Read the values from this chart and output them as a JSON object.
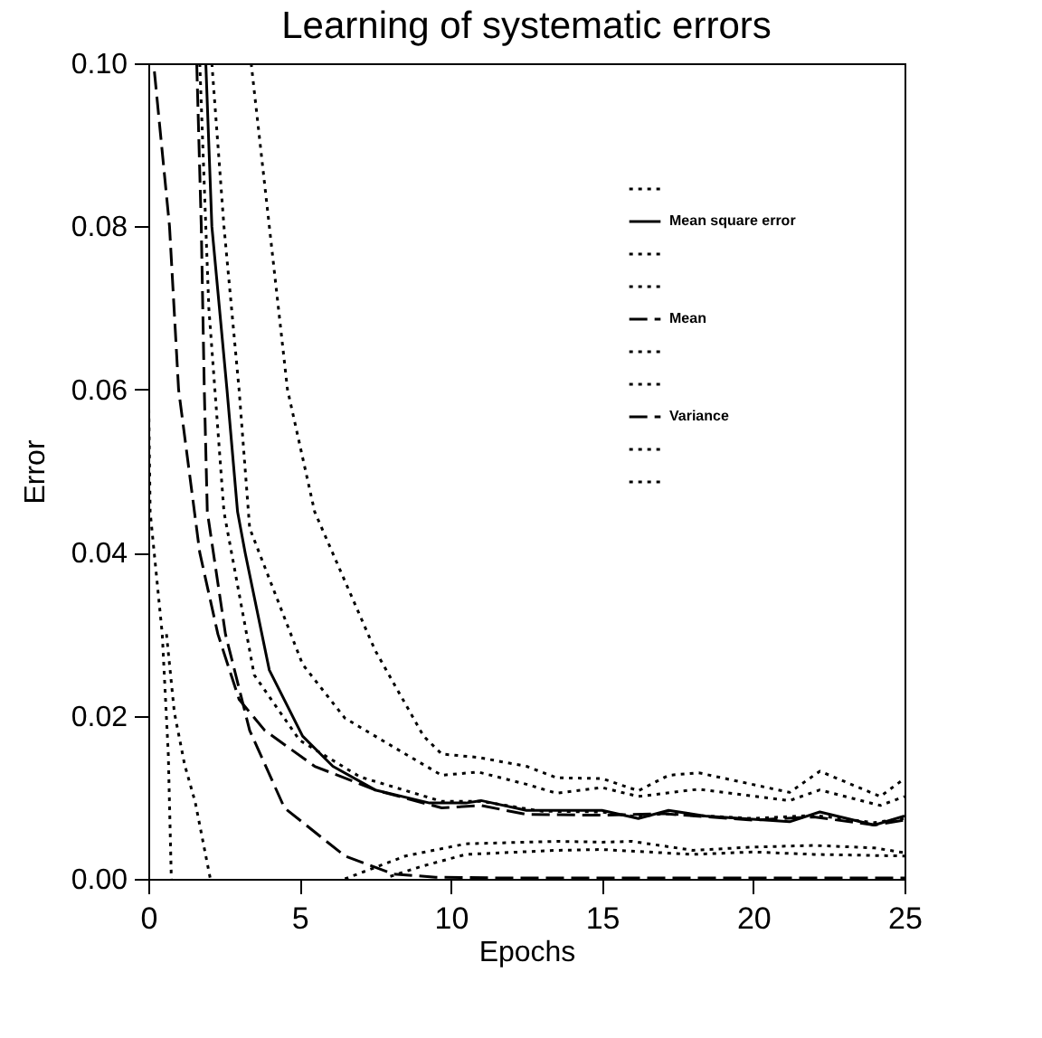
{
  "chart_data": {
    "type": "line",
    "title": "Learning of systematic errors",
    "xlabel": "Epochs",
    "ylabel": "Error",
    "xlim": [
      0,
      25
    ],
    "xticks": [
      0,
      5,
      10,
      15,
      20,
      25
    ],
    "ylim": [
      0,
      0.1
    ],
    "yticks": [
      {
        "value": 0,
        "label": "0.00"
      },
      {
        "value": 0.02,
        "label": "0.02"
      },
      {
        "value": 0.04,
        "label": "0.04"
      },
      {
        "value": 0.06,
        "label": "0.06"
      },
      {
        "value": 0.08,
        "label": "0.08"
      },
      {
        "value": 0.1,
        "label": "0.10"
      }
    ],
    "grid": false,
    "legend": "top right",
    "series": [
      {
        "color": "#000000",
        "line_style": "dotted",
        "x": [
          3.4,
          4.0,
          4.6,
          5.5,
          7.5,
          9.1,
          9.7,
          10.9,
          12.5,
          13.5,
          15,
          16.2,
          17.2,
          18.2,
          21.2,
          22.2,
          24.2,
          25
        ],
        "values": [
          0.1,
          0.08,
          0.06,
          0.045,
          0.028,
          0.0175,
          0.0153,
          0.0149,
          0.0138,
          0.0124,
          0.0123,
          0.0108,
          0.0127,
          0.013,
          0.0106,
          0.0132,
          0.0101,
          0.0123
        ]
      },
      {
        "name": "Mean square error",
        "color": "#000000",
        "line_style": "solid",
        "x": [
          1.9,
          2.1,
          2.6,
          2.95,
          3.2,
          4.0,
          5.1,
          6.1,
          7.5,
          9.3,
          10.5,
          11,
          12.5,
          15,
          16.2,
          17.2,
          18.4,
          21.2,
          22.2,
          24,
          25
        ],
        "values": [
          0.1,
          0.08,
          0.06,
          0.045,
          0.04,
          0.0256,
          0.0175,
          0.0138,
          0.0109,
          0.0093,
          0.0093,
          0.0096,
          0.0084,
          0.0084,
          0.0074,
          0.0084,
          0.0077,
          0.007,
          0.0082,
          0.0066,
          0.0077
        ]
      },
      {
        "color": "#000000",
        "line_style": "dotted",
        "x": [
          2.1,
          2.5,
          3.0,
          3.35,
          5.1,
          6.5,
          8.5,
          9.7,
          10.9,
          12.5,
          13.5,
          15,
          16.2,
          18.2,
          21.2,
          22.2,
          24.2,
          25
        ],
        "values": [
          0.1,
          0.08,
          0.06,
          0.043,
          0.0263,
          0.0197,
          0.0153,
          0.0127,
          0.0131,
          0.0116,
          0.0105,
          0.0112,
          0.0101,
          0.011,
          0.0096,
          0.0109,
          0.009,
          0.0101
        ]
      },
      {
        "color": "#000000",
        "line_style": "dotted",
        "x": [
          1.7,
          2.0,
          2.5,
          3.5,
          5,
          7,
          9.7,
          11,
          13,
          15,
          16.2,
          17,
          20,
          22,
          24,
          25
        ],
        "values": [
          0.1,
          0.07,
          0.045,
          0.025,
          0.017,
          0.0125,
          0.0095,
          0.0095,
          0.0083,
          0.0082,
          0.0076,
          0.008,
          0.0074,
          0.0078,
          0.0069,
          0.0074
        ]
      },
      {
        "name": "Mean",
        "color": "#000000",
        "line_style": "dashed",
        "x": [
          0.2,
          0.7,
          1.0,
          1.7,
          2.3,
          3.0,
          3.85,
          5.5,
          7.5,
          9.7,
          11,
          12.5,
          15,
          17,
          20,
          22,
          24,
          25
        ],
        "values": [
          0.099,
          0.08,
          0.06,
          0.04,
          0.03,
          0.022,
          0.0182,
          0.0138,
          0.0109,
          0.0087,
          0.009,
          0.0079,
          0.0078,
          0.008,
          0.0072,
          0.0076,
          0.0066,
          0.0072
        ]
      },
      {
        "color": "#000000",
        "line_style": "dotted",
        "x": [
          6.5,
          8.5,
          10.5,
          13.5,
          15,
          16,
          18,
          20,
          22,
          24,
          25
        ],
        "values": [
          0,
          0.0028,
          0.0043,
          0.0046,
          0.0045,
          0.0046,
          0.0035,
          0.0039,
          0.0041,
          0.0038,
          0.0032
        ]
      },
      {
        "color": "#000000",
        "line_style": "dotted",
        "x": [
          8,
          9,
          10.5,
          13.5,
          15,
          18,
          20,
          22,
          25
        ],
        "values": [
          0.0003,
          0.0015,
          0.003,
          0.0035,
          0.0036,
          0.003,
          0.0033,
          0.003,
          0.0028
        ]
      },
      {
        "name": "Variance",
        "color": "#000000",
        "line_style": "dashed",
        "x": [
          1.6,
          1.75,
          1.85,
          1.95,
          2.55,
          3.35,
          4.5,
          6.5,
          8.1,
          9.5,
          12,
          15,
          20,
          25
        ],
        "values": [
          0.1,
          0.08,
          0.06,
          0.045,
          0.03,
          0.0182,
          0.0087,
          0.0028,
          0.0006,
          0.0002,
          0.0001,
          0.0001,
          0.0001,
          0.0001
        ]
      },
      {
        "color": "#000000",
        "line_style": "dotted",
        "x": [
          0,
          0.06,
          0.46,
          0.66,
          0.76
        ],
        "values": [
          0.062,
          0.045,
          0.03,
          0.0153,
          0
        ]
      },
      {
        "color": "#000000",
        "line_style": "dotted",
        "x": [
          0.6,
          0.86,
          1.2,
          1.55,
          2.05
        ],
        "values": [
          0.03,
          0.0204,
          0.014,
          0.0094,
          0
        ]
      }
    ]
  }
}
